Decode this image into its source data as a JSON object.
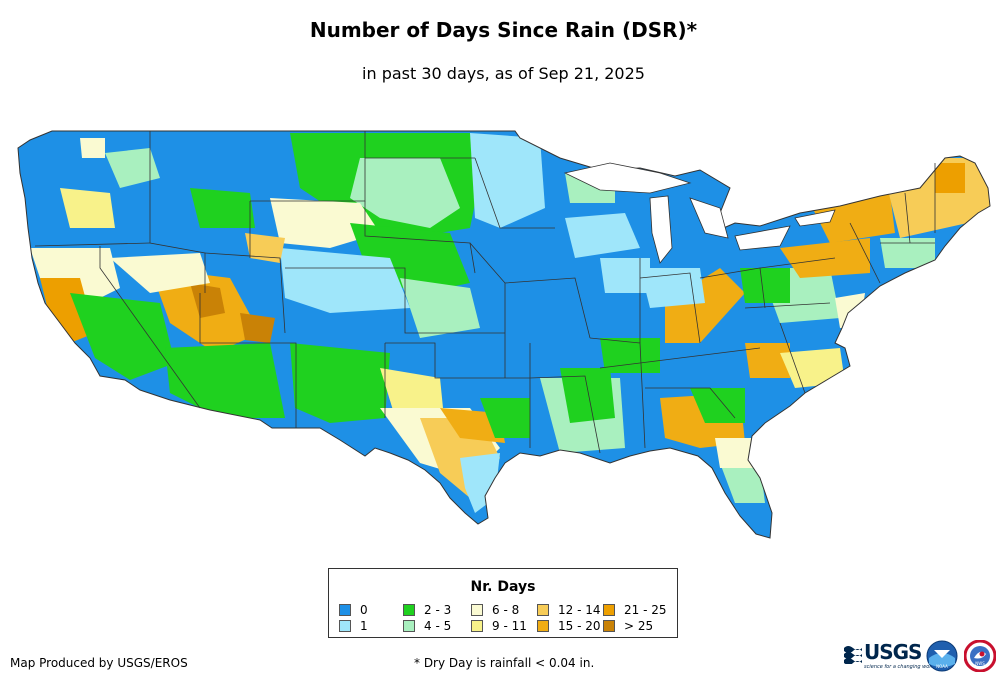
{
  "header": {
    "title": "Number of Days Since Rain (DSR)*",
    "subtitle": "in past 30 days, as of Sep 21, 2025"
  },
  "legend": {
    "title": "Nr. Days",
    "items": [
      {
        "label": "0",
        "color": "#1e90e6"
      },
      {
        "label": "1",
        "color": "#9fe6fa"
      },
      {
        "label": "2 - 3",
        "color": "#1fd11f"
      },
      {
        "label": "4 - 5",
        "color": "#a9f0bf"
      },
      {
        "label": "6 - 8",
        "color": "#fafad2"
      },
      {
        "label": "9 - 11",
        "color": "#f8f28a"
      },
      {
        "label": "12 - 14",
        "color": "#f7cc57"
      },
      {
        "label": "15 - 20",
        "color": "#f0ad14"
      },
      {
        "label": "21 - 25",
        "color": "#ed9f00"
      },
      {
        "label": "> 25",
        "color": "#c98206"
      }
    ]
  },
  "footer": {
    "credit": "Map Produced by USGS/EROS",
    "note": "* Dry Day is rainfall < 0.04 in."
  },
  "logos": {
    "usgs_text": "USGS",
    "usgs_tagline": "science for a changing world",
    "noaa_text": "NOAA",
    "nws_text": "NWS"
  }
}
